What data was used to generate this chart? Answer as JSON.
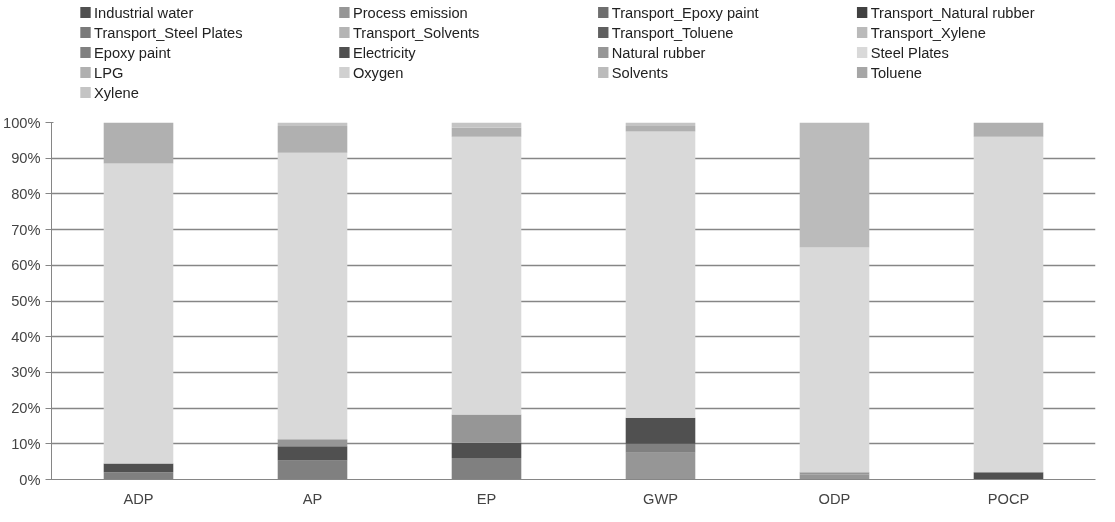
{
  "chart_data": {
    "type": "bar",
    "stacked": true,
    "categories": [
      "ADP",
      "AP",
      "EP",
      "GWP",
      "ODP",
      "POCP"
    ],
    "ylim": [
      0,
      100
    ],
    "yticks": [
      {
        "value": 0,
        "label": "0%"
      },
      {
        "value": 10,
        "label": "10%"
      },
      {
        "value": 20,
        "label": "20%"
      },
      {
        "value": 30,
        "label": "30%"
      },
      {
        "value": 40,
        "label": "40%"
      },
      {
        "value": 50,
        "label": "50%"
      },
      {
        "value": 60,
        "label": "60%"
      },
      {
        "value": 70,
        "label": "70%"
      },
      {
        "value": 80,
        "label": "80%"
      },
      {
        "value": 90,
        "label": "90%"
      },
      {
        "value": 100,
        "label": "100%"
      }
    ],
    "grid": "y",
    "legend": "top",
    "series": [
      {
        "name": "Industrial water",
        "color": "#505050",
        "values": [
          0,
          0,
          0,
          0,
          0,
          0
        ]
      },
      {
        "name": "Process emission",
        "color": "#969696",
        "values": [
          0,
          0,
          0,
          7.5,
          1.5,
          0
        ]
      },
      {
        "name": "Transport_Epoxy paint",
        "color": "#6e6e6e",
        "values": [
          0,
          0,
          0,
          0,
          0,
          0
        ]
      },
      {
        "name": "Transport_Natural rubber",
        "color": "#404040",
        "values": [
          0,
          0,
          0,
          0,
          0,
          0
        ]
      },
      {
        "name": "Transport_Steel Plates",
        "color": "#7a7a7a",
        "values": [
          0,
          0,
          0,
          0,
          0,
          0
        ]
      },
      {
        "name": "Transport_Solvents",
        "color": "#b4b4b4",
        "values": [
          0,
          0,
          0,
          0,
          0,
          0
        ]
      },
      {
        "name": "Transport_Toluene",
        "color": "#5f5f5f",
        "values": [
          0,
          0,
          0,
          0,
          0,
          0
        ]
      },
      {
        "name": "Transport_Xylene",
        "color": "#bababa",
        "values": [
          0,
          0,
          0,
          0,
          0,
          0
        ]
      },
      {
        "name": "Epoxy paint",
        "color": "#808080",
        "values": [
          2,
          5.3,
          6,
          2.5,
          0,
          0
        ]
      },
      {
        "name": "Electricity",
        "color": "#505050",
        "values": [
          2.5,
          4,
          4.3,
          7.3,
          0,
          2
        ]
      },
      {
        "name": "Natural rubber",
        "color": "#969696",
        "values": [
          0,
          2,
          7.9,
          0,
          0.5,
          0
        ]
      },
      {
        "name": "Steel Plates",
        "color": "#d9d9d9",
        "values": [
          84,
          80.2,
          77.8,
          80.2,
          63,
          94
        ]
      },
      {
        "name": "LPG",
        "color": "#b0b0b0",
        "values": [
          11.5,
          7.5,
          2.5,
          1.5,
          0,
          4
        ]
      },
      {
        "name": "Oxygen",
        "color": "#d0d0d0",
        "values": [
          0,
          0,
          0,
          0,
          0,
          0
        ]
      },
      {
        "name": "Solvents",
        "color": "#bbbbbb",
        "values": [
          0,
          0,
          0,
          0,
          35,
          0
        ]
      },
      {
        "name": "Toluene",
        "color": "#a6a6a6",
        "values": [
          0,
          0,
          0,
          0,
          0,
          0
        ]
      },
      {
        "name": "Xylene",
        "color": "#c4c4c4",
        "values": [
          0,
          1,
          1.5,
          1,
          0,
          0
        ]
      }
    ]
  }
}
